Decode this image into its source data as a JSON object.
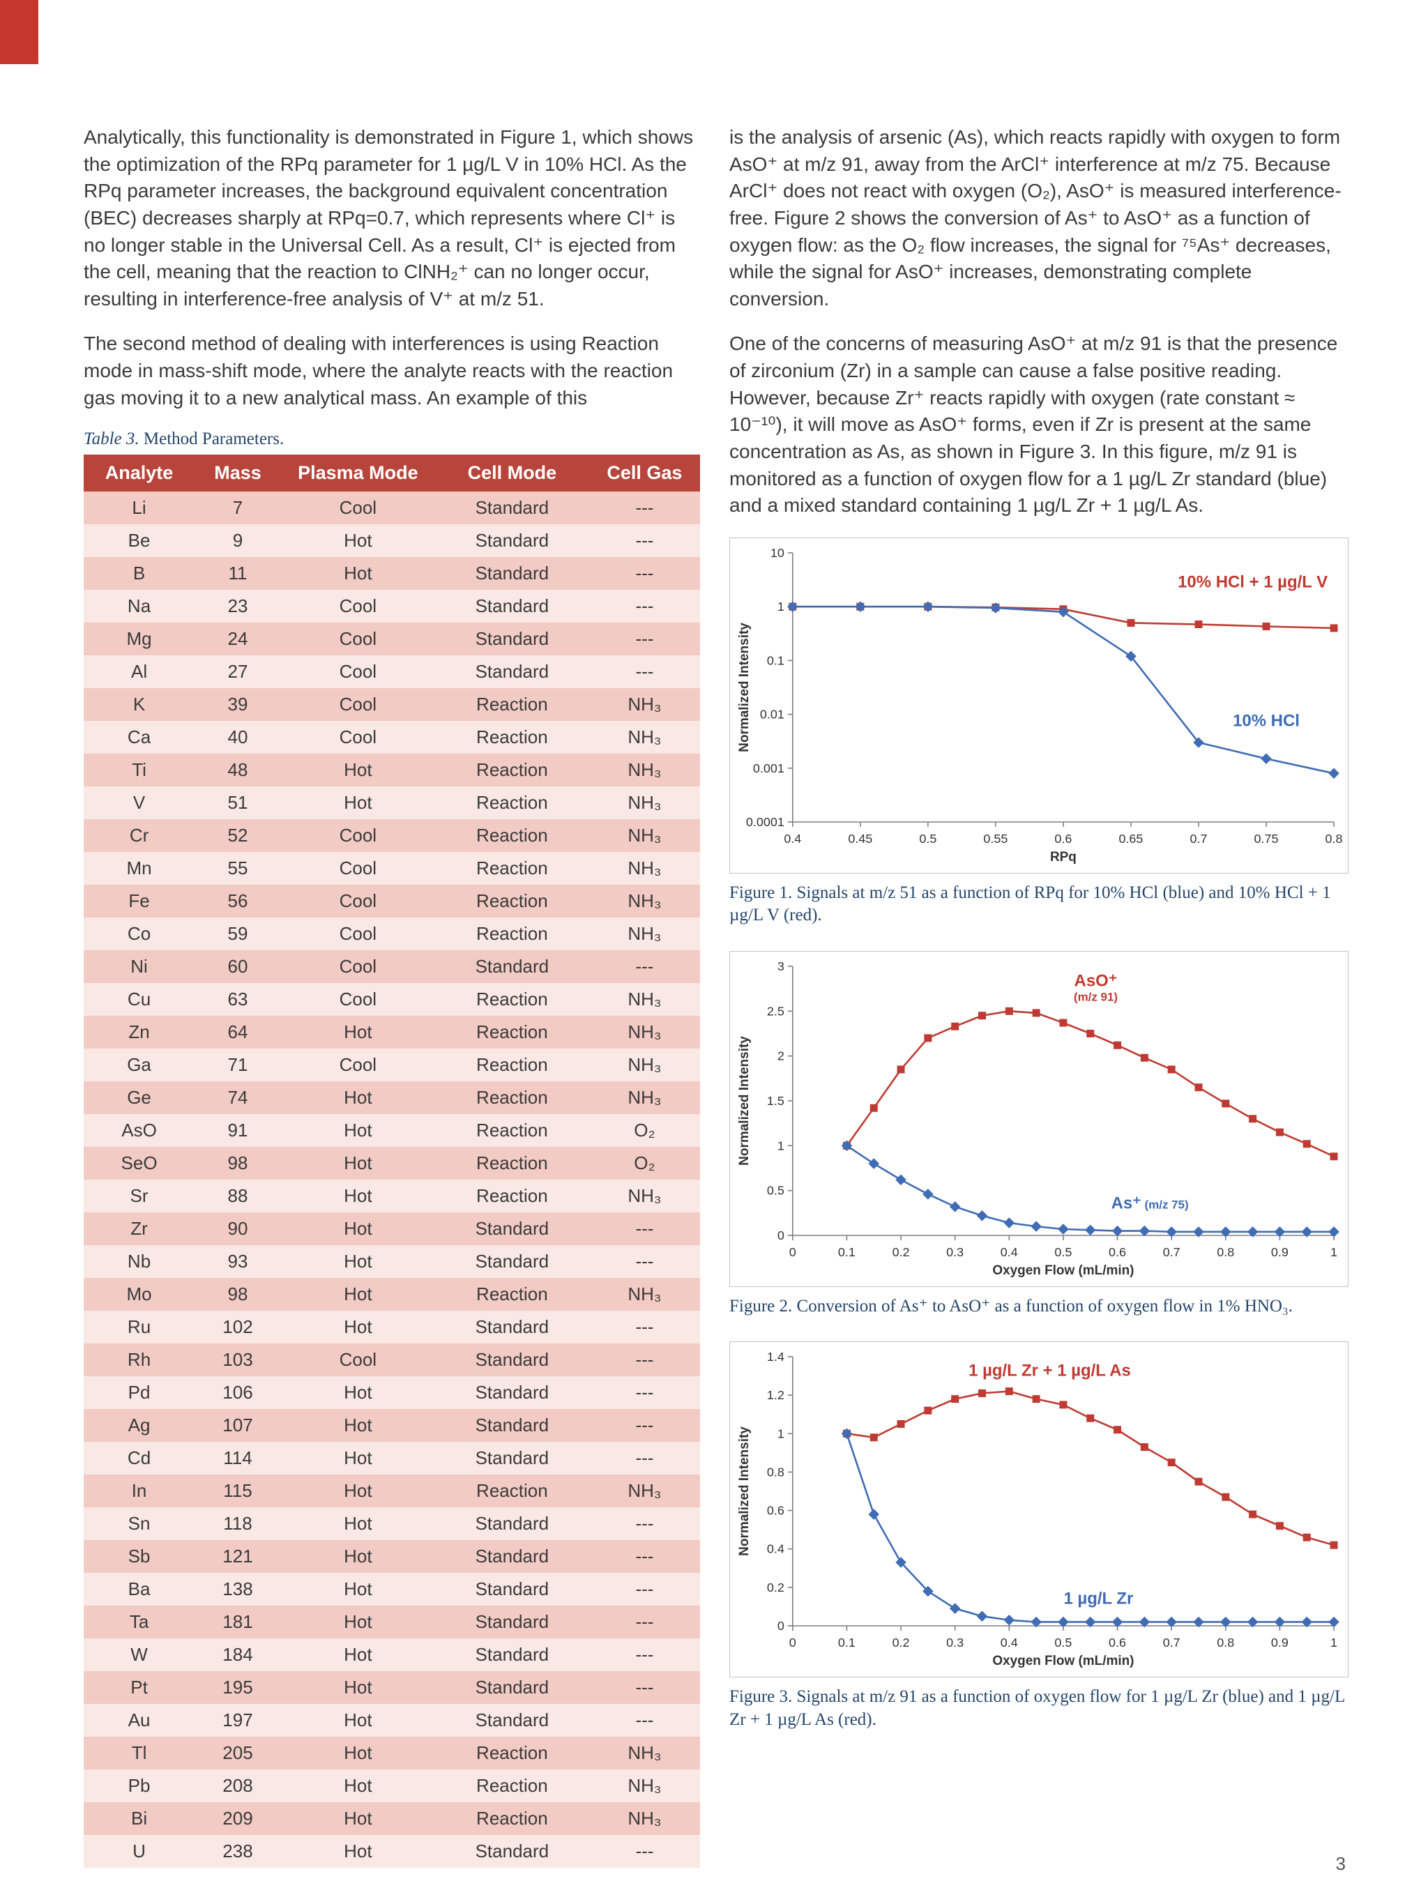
{
  "page": {
    "number": "3"
  },
  "accent_color": "#c5372e",
  "columns": {
    "left": {
      "para1": "Analytically, this functionality is demonstrated in Figure 1, which shows the optimization of the RPq parameter for 1 µg/L V in 10% HCl. As the RPq parameter increases, the background equivalent concentration (BEC) decreases sharply at RPq=0.7, which represents where Cl⁺ is no longer stable in the Universal Cell. As a result, Cl⁺ is ejected from the cell, meaning that the reaction to ClNH₂⁺ can no longer occur, resulting in interference-free analysis of V⁺ at m/z 51.",
      "para2": "The second method of dealing with interferences is using Reaction mode in mass-shift mode, where the analyte reacts with the reaction gas moving it to a new analytical mass. An example of this"
    },
    "right": {
      "para1": "is the analysis of arsenic (As), which reacts rapidly with oxygen to form AsO⁺ at m/z 91, away from the ArCl⁺ interference at m/z 75. Because ArCl⁺ does not react with oxygen (O₂), AsO⁺ is measured interference-free. Figure 2 shows the conversion of As⁺ to AsO⁺ as a function of oxygen flow: as the O₂ flow increases, the signal for ⁷⁵As⁺ decreases, while the signal for AsO⁺ increases, demonstrating complete conversion.",
      "para2": "One of the concerns of measuring AsO⁺ at m/z 91 is that the presence of zirconium (Zr) in a sample can cause a false positive reading. However, because Zr⁺ reacts rapidly with oxygen (rate constant ≈ 10⁻¹⁰), it will move as AsO⁺ forms, even if Zr is present at the same concentration as As, as shown in Figure 3. In this figure, m/z 91 is monitored as a function of oxygen flow for a 1 µg/L Zr standard (blue) and a mixed standard containing 1 µg/L Zr + 1 µg/L As."
    }
  },
  "table": {
    "caption_label": "Table 3.",
    "caption_text": "Method Parameters.",
    "headers": [
      "Analyte",
      "Mass",
      "Plasma Mode",
      "Cell Mode",
      "Cell Gas"
    ],
    "rows": [
      [
        "Li",
        "7",
        "Cool",
        "Standard",
        "---"
      ],
      [
        "Be",
        "9",
        "Hot",
        "Standard",
        "---"
      ],
      [
        "B",
        "11",
        "Hot",
        "Standard",
        "---"
      ],
      [
        "Na",
        "23",
        "Cool",
        "Standard",
        "---"
      ],
      [
        "Mg",
        "24",
        "Cool",
        "Standard",
        "---"
      ],
      [
        "Al",
        "27",
        "Cool",
        "Standard",
        "---"
      ],
      [
        "K",
        "39",
        "Cool",
        "Reaction",
        "NH₃"
      ],
      [
        "Ca",
        "40",
        "Cool",
        "Reaction",
        "NH₃"
      ],
      [
        "Ti",
        "48",
        "Hot",
        "Reaction",
        "NH₃"
      ],
      [
        "V",
        "51",
        "Hot",
        "Reaction",
        "NH₃"
      ],
      [
        "Cr",
        "52",
        "Cool",
        "Reaction",
        "NH₃"
      ],
      [
        "Mn",
        "55",
        "Cool",
        "Reaction",
        "NH₃"
      ],
      [
        "Fe",
        "56",
        "Cool",
        "Reaction",
        "NH₃"
      ],
      [
        "Co",
        "59",
        "Cool",
        "Reaction",
        "NH₃"
      ],
      [
        "Ni",
        "60",
        "Cool",
        "Standard",
        "---"
      ],
      [
        "Cu",
        "63",
        "Cool",
        "Reaction",
        "NH₃"
      ],
      [
        "Zn",
        "64",
        "Hot",
        "Reaction",
        "NH₃"
      ],
      [
        "Ga",
        "71",
        "Cool",
        "Reaction",
        "NH₃"
      ],
      [
        "Ge",
        "74",
        "Hot",
        "Reaction",
        "NH₃"
      ],
      [
        "AsO",
        "91",
        "Hot",
        "Reaction",
        "O₂"
      ],
      [
        "SeO",
        "98",
        "Hot",
        "Reaction",
        "O₂"
      ],
      [
        "Sr",
        "88",
        "Hot",
        "Reaction",
        "NH₃"
      ],
      [
        "Zr",
        "90",
        "Hot",
        "Standard",
        "---"
      ],
      [
        "Nb",
        "93",
        "Hot",
        "Standard",
        "---"
      ],
      [
        "Mo",
        "98",
        "Hot",
        "Reaction",
        "NH₃"
      ],
      [
        "Ru",
        "102",
        "Hot",
        "Standard",
        "---"
      ],
      [
        "Rh",
        "103",
        "Cool",
        "Standard",
        "---"
      ],
      [
        "Pd",
        "106",
        "Hot",
        "Standard",
        "---"
      ],
      [
        "Ag",
        "107",
        "Hot",
        "Standard",
        "---"
      ],
      [
        "Cd",
        "114",
        "Hot",
        "Standard",
        "---"
      ],
      [
        "In",
        "115",
        "Hot",
        "Reaction",
        "NH₃"
      ],
      [
        "Sn",
        "118",
        "Hot",
        "Standard",
        "---"
      ],
      [
        "Sb",
        "121",
        "Hot",
        "Standard",
        "---"
      ],
      [
        "Ba",
        "138",
        "Hot",
        "Standard",
        "---"
      ],
      [
        "Ta",
        "181",
        "Hot",
        "Standard",
        "---"
      ],
      [
        "W",
        "184",
        "Hot",
        "Standard",
        "---"
      ],
      [
        "Pt",
        "195",
        "Hot",
        "Standard",
        "---"
      ],
      [
        "Au",
        "197",
        "Hot",
        "Standard",
        "---"
      ],
      [
        "Tl",
        "205",
        "Hot",
        "Reaction",
        "NH₃"
      ],
      [
        "Pb",
        "208",
        "Hot",
        "Reaction",
        "NH₃"
      ],
      [
        "Bi",
        "209",
        "Hot",
        "Reaction",
        "NH₃"
      ],
      [
        "U",
        "238",
        "Hot",
        "Standard",
        "---"
      ]
    ]
  },
  "figures": [
    {
      "caption_label": "Figure 1.",
      "caption_text": "Signals at m/z 51 as a function of RPq for 10% HCl (blue) and 10% HCl + 1 µg/L V (red)."
    },
    {
      "caption_label": "Figure 2.",
      "caption_text": "Conversion of As⁺ to AsO⁺ as a function of oxygen flow in 1% HNO₃."
    },
    {
      "caption_label": "Figure 3.",
      "caption_text": "Signals at m/z 91 as a function of oxygen flow for 1 µg/L Zr (blue) and 1 µg/L Zr + 1 µg/L As (red)."
    }
  ],
  "chart_data": [
    {
      "type": "line",
      "title": "",
      "xlabel": "RPq",
      "ylabel": "Normalized Intensity",
      "x_range": [
        0.4,
        0.8
      ],
      "x_ticks": [
        0.4,
        0.45,
        0.5,
        0.55,
        0.6,
        0.65,
        0.7,
        0.75,
        0.8
      ],
      "y_scale": "log",
      "y_range": [
        0.0001,
        10
      ],
      "y_ticks": [
        10,
        1,
        0.1,
        0.01,
        0.001,
        0.0001
      ],
      "grid": false,
      "legend": "none",
      "series": [
        {
          "name": "10% HCl + 1 µg/L V",
          "color": "#bf3a32",
          "marker": "square",
          "x": [
            0.4,
            0.45,
            0.5,
            0.55,
            0.6,
            0.65,
            0.7,
            0.75,
            0.8
          ],
          "y": [
            1.0,
            1.0,
            1.0,
            0.97,
            0.9,
            0.5,
            0.47,
            0.43,
            0.4
          ]
        },
        {
          "name": "10% HCl",
          "color": "#3f6cb4",
          "marker": "diamond",
          "x": [
            0.4,
            0.45,
            0.5,
            0.55,
            0.6,
            0.65,
            0.7,
            0.75,
            0.8
          ],
          "y": [
            1.0,
            1.0,
            1.0,
            0.95,
            0.8,
            0.12,
            0.003,
            0.0015,
            0.0008
          ]
        }
      ],
      "annotations": [
        {
          "text": "10% HCl + 1 µg/L V",
          "x": 0.74,
          "y": 2.3,
          "color": "#bf3a32"
        },
        {
          "text": "10% HCl",
          "x": 0.75,
          "y": 0.006,
          "color": "#3f6cb4"
        }
      ]
    },
    {
      "type": "line",
      "title": "",
      "xlabel": "Oxygen Flow (mL/min)",
      "ylabel": "Normalized Intensity",
      "x_range": [
        0,
        1
      ],
      "x_ticks": [
        0,
        0.1,
        0.2,
        0.3,
        0.4,
        0.5,
        0.6,
        0.7,
        0.8,
        0.9,
        1
      ],
      "y_scale": "linear",
      "y_range": [
        0,
        3
      ],
      "y_ticks": [
        0,
        0.5,
        1,
        1.5,
        2,
        2.5,
        3
      ],
      "grid": false,
      "legend": "none",
      "series": [
        {
          "name": "AsO⁺ (m/z 91)",
          "color": "#bf3a32",
          "marker": "square",
          "x": [
            0.1,
            0.15,
            0.2,
            0.25,
            0.3,
            0.35,
            0.4,
            0.45,
            0.5,
            0.55,
            0.6,
            0.65,
            0.7,
            0.75,
            0.8,
            0.85,
            0.9,
            0.95,
            1.0
          ],
          "y": [
            1.0,
            1.42,
            1.85,
            2.2,
            2.33,
            2.45,
            2.5,
            2.48,
            2.37,
            2.25,
            2.12,
            1.98,
            1.85,
            1.65,
            1.47,
            1.3,
            1.15,
            1.02,
            0.88
          ]
        },
        {
          "name": "As⁺ (m/z 75)",
          "color": "#3f6cb4",
          "marker": "diamond",
          "x": [
            0.1,
            0.15,
            0.2,
            0.25,
            0.3,
            0.35,
            0.4,
            0.45,
            0.5,
            0.55,
            0.6,
            0.65,
            0.7,
            0.75,
            0.8,
            0.85,
            0.9,
            0.95,
            1.0
          ],
          "y": [
            1.0,
            0.8,
            0.62,
            0.46,
            0.32,
            0.22,
            0.14,
            0.1,
            0.07,
            0.06,
            0.05,
            0.05,
            0.04,
            0.04,
            0.04,
            0.04,
            0.04,
            0.04,
            0.04
          ]
        }
      ],
      "annotations": [
        {
          "text": "AsO⁺",
          "below": "(m/z 91)",
          "x": 0.56,
          "y": 2.78,
          "color": "#bf3a32"
        },
        {
          "text": "As⁺",
          "inline": "(m/z 75)",
          "x": 0.66,
          "y": 0.3,
          "color": "#3f6cb4"
        }
      ]
    },
    {
      "type": "line",
      "title": "",
      "xlabel": "Oxygen Flow (mL/min)",
      "ylabel": "Normalized Intensity",
      "x_range": [
        0,
        1
      ],
      "x_ticks": [
        0,
        0.1,
        0.2,
        0.3,
        0.4,
        0.5,
        0.6,
        0.7,
        0.8,
        0.9,
        1
      ],
      "y_scale": "linear",
      "y_range": [
        0,
        1.4
      ],
      "y_ticks": [
        0,
        0.2,
        0.4,
        0.6,
        0.8,
        1,
        1.2,
        1.4
      ],
      "grid": false,
      "legend": "none",
      "series": [
        {
          "name": "1 µg/L Zr + 1 µg/L As",
          "color": "#bf3a32",
          "marker": "square",
          "x": [
            0.1,
            0.15,
            0.2,
            0.25,
            0.3,
            0.35,
            0.4,
            0.45,
            0.5,
            0.55,
            0.6,
            0.65,
            0.7,
            0.75,
            0.8,
            0.85,
            0.9,
            0.95,
            1.0
          ],
          "y": [
            1.0,
            0.98,
            1.05,
            1.12,
            1.18,
            1.21,
            1.22,
            1.18,
            1.15,
            1.08,
            1.02,
            0.93,
            0.85,
            0.75,
            0.67,
            0.58,
            0.52,
            0.46,
            0.42
          ]
        },
        {
          "name": "1 µg/L Zr",
          "color": "#3f6cb4",
          "marker": "diamond",
          "x": [
            0.1,
            0.15,
            0.2,
            0.25,
            0.3,
            0.35,
            0.4,
            0.45,
            0.5,
            0.55,
            0.6,
            0.65,
            0.7,
            0.75,
            0.8,
            0.85,
            0.9,
            0.95,
            1.0
          ],
          "y": [
            1.0,
            0.58,
            0.33,
            0.18,
            0.09,
            0.05,
            0.03,
            0.02,
            0.02,
            0.02,
            0.02,
            0.02,
            0.02,
            0.02,
            0.02,
            0.02,
            0.02,
            0.02,
            0.02
          ]
        }
      ],
      "annotations": [
        {
          "text": "1 µg/L Zr + 1 µg/L As",
          "x": 0.475,
          "y": 1.3,
          "color": "#bf3a32"
        },
        {
          "text": "1 µg/L Zr",
          "x": 0.565,
          "y": 0.115,
          "color": "#3f6cb4"
        }
      ]
    }
  ]
}
